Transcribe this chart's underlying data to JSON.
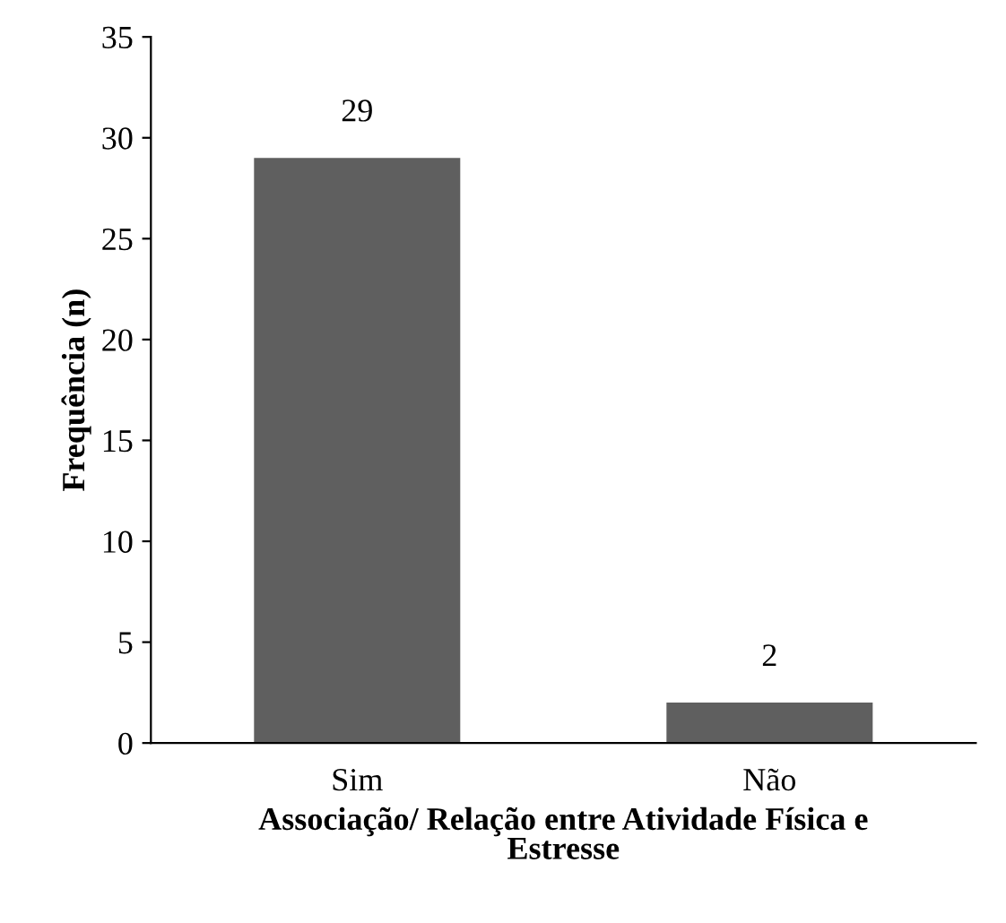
{
  "chart_data": {
    "type": "bar",
    "xlabel": "Associação/ Relação entre Atividade Física e\nEstresse",
    "ylabel": "Frequência (n)",
    "categories": [
      "Sim",
      "Não"
    ],
    "values": [
      29,
      2
    ],
    "color": "#5f5f5f",
    "ylim": [
      0,
      35
    ],
    "yticks": [
      0,
      5,
      10,
      15,
      20,
      25,
      30,
      35
    ],
    "grid": false,
    "data_labels": true
  }
}
